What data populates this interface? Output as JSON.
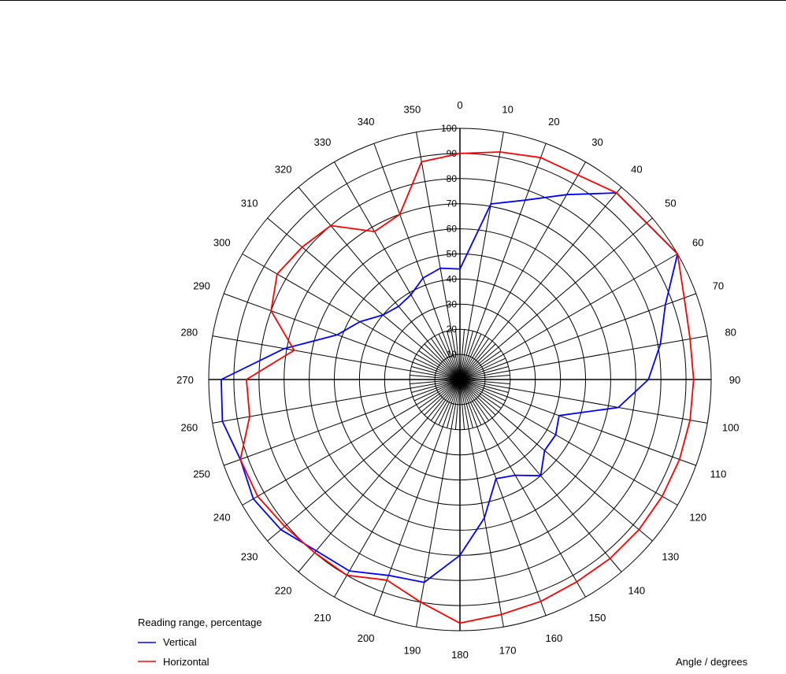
{
  "chart_data": {
    "type": "line",
    "subtype": "polar",
    "title": "",
    "angle_axis": {
      "label": "Angle / degrees",
      "ticks": [
        0,
        10,
        20,
        30,
        40,
        50,
        60,
        70,
        80,
        90,
        100,
        110,
        120,
        130,
        140,
        150,
        160,
        170,
        180,
        190,
        200,
        210,
        220,
        230,
        240,
        250,
        260,
        270,
        280,
        290,
        300,
        310,
        320,
        330,
        340,
        350
      ],
      "direction": "clockwise",
      "zero_at": "top"
    },
    "radial_axis": {
      "range": [
        0,
        100
      ],
      "ticks": [
        10,
        20,
        30,
        40,
        50,
        60,
        70,
        80,
        90,
        100
      ]
    },
    "grid": true,
    "legend": {
      "title": "Reading range, percentage",
      "placement": "bottom-left"
    },
    "angles": [
      0,
      10,
      20,
      30,
      40,
      50,
      60,
      70,
      80,
      90,
      100,
      110,
      120,
      130,
      140,
      150,
      160,
      170,
      180,
      190,
      200,
      210,
      220,
      230,
      240,
      250,
      260,
      270,
      280,
      290,
      300,
      310,
      320,
      330,
      340,
      350
    ],
    "series": [
      {
        "name": "Vertical",
        "color": "#0000ff",
        "values": [
          44,
          71,
          76,
          85,
          97,
          97,
          100,
          87,
          81,
          75,
          64,
          42,
          44,
          44,
          50,
          44,
          42,
          56,
          70,
          82,
          83,
          88,
          89,
          93,
          95,
          93,
          96,
          95,
          71,
          52,
          46,
          40,
          38,
          39,
          43,
          45
        ]
      },
      {
        "name": "Horizontal",
        "color": "#ff0000",
        "values": [
          90,
          92,
          94,
          94,
          97,
          97,
          100,
          95,
          93,
          93,
          93,
          93,
          93,
          93,
          93,
          93,
          94,
          95,
          97,
          90,
          85,
          90,
          90,
          91,
          93,
          93,
          85,
          85,
          67,
          80,
          84,
          82,
          80,
          68,
          70,
          88
        ]
      }
    ]
  }
}
